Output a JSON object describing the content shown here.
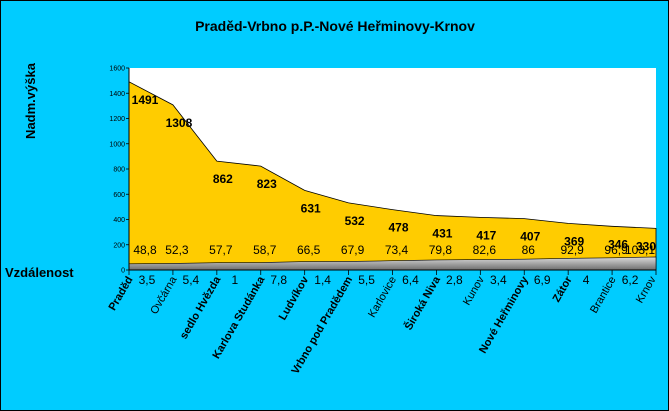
{
  "chart_data": {
    "type": "area",
    "title": "Praděd-Vrbno p.P.-Nové Heřminovy-Krnov",
    "ylabel": "Nadm.výška",
    "xlabel": "Vzdálenost",
    "ylim": [
      0,
      1600
    ],
    "yticks": [
      0,
      200,
      400,
      600,
      800,
      1000,
      1200,
      1400,
      1600
    ],
    "grid": false,
    "categories": [
      "Praděd",
      "Ovčárna",
      "sedlo Hvězda",
      "Karlova Studánka",
      "Ludvíkov",
      "Vrbno pod Pradědem",
      "Karlovice",
      "Široká Niva",
      "Kunov",
      "Nové Heřminovy",
      "Zátor",
      "Brantice",
      "Krnov"
    ],
    "bold_categories": [
      true,
      false,
      true,
      true,
      true,
      true,
      false,
      true,
      false,
      true,
      true,
      false,
      false
    ],
    "elevation": [
      1491,
      1308,
      862,
      823,
      631,
      532,
      478,
      431,
      417,
      407,
      369,
      346,
      330
    ],
    "elevation_labels": [
      "1491",
      "1308",
      "862",
      "823",
      "631",
      "532",
      "478",
      "431",
      "417",
      "407",
      "369",
      "346",
      "330"
    ],
    "cumulative_km": [
      48.8,
      52.3,
      57.7,
      58.7,
      66.5,
      67.9,
      73.4,
      79.8,
      82.6,
      86,
      92.9,
      96.9,
      103.1
    ],
    "cumulative_km_labels": [
      "48,8",
      "52,3",
      "57,7",
      "58,7",
      "66,5",
      "67,9",
      "73,4",
      "79,8",
      "82,6",
      "86",
      "92,9",
      "96,9",
      "103,1"
    ],
    "segment_km_labels": [
      "3,5",
      "5,4",
      "1",
      "7,8",
      "1,4",
      "5,5",
      "6,4",
      "2,8",
      "3,4",
      "6,9",
      "4",
      "6,2"
    ],
    "colors": {
      "background": "#00ccff",
      "plot_area": "#ffffff",
      "elevation_fill": "#ffcc00",
      "distance_fill_light": "#dcdcdc",
      "distance_fill_dark": "#6e6e6e",
      "text": "#000000"
    }
  }
}
